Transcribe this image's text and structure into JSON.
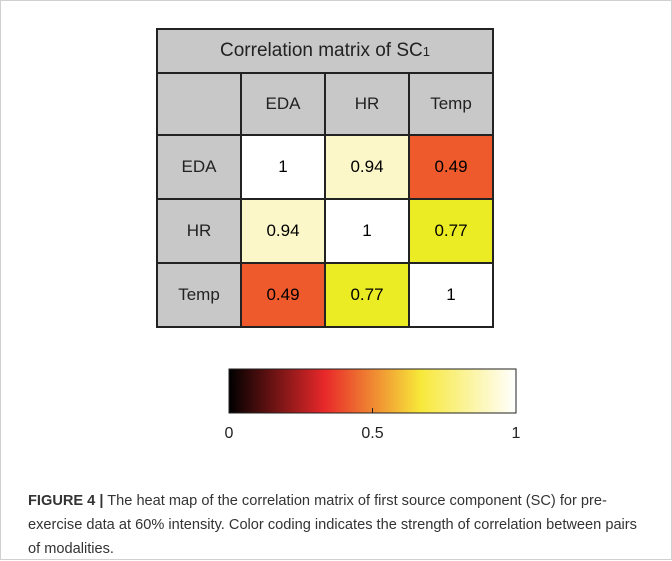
{
  "chart_data": {
    "type": "heatmap",
    "title_prefix": "Correlation matrix of SC",
    "title_subscript": "1",
    "rows": [
      "EDA",
      "HR",
      "Temp"
    ],
    "cols": [
      "EDA",
      "HR",
      "Temp"
    ],
    "values": [
      [
        "1",
        "0.94",
        "0.49"
      ],
      [
        "0.94",
        "1",
        "0.77"
      ],
      [
        "0.49",
        "0.77",
        "1"
      ]
    ],
    "cell_colors": [
      [
        "#ffffff",
        "#fbf7c8",
        "#ee5a2c"
      ],
      [
        "#fbf7c8",
        "#ffffff",
        "#ecec24"
      ],
      [
        "#ee5a2c",
        "#ecec24",
        "#ffffff"
      ]
    ],
    "colorbar": {
      "min": 0,
      "max": 1,
      "ticks": [
        "0",
        "0.5",
        "1"
      ],
      "tick_values": [
        0,
        0.5,
        1
      ],
      "colormap": "hot",
      "stops": [
        "#000000",
        "#e8282a",
        "#f7e83a",
        "#ffffff"
      ]
    }
  },
  "caption": {
    "label": "FIGURE 4 |",
    "text": " The heat map of the correlation matrix of first source component (SC) for pre-exercise data at 60% intensity. Color coding indicates the strength of correlation between pairs of modalities."
  }
}
